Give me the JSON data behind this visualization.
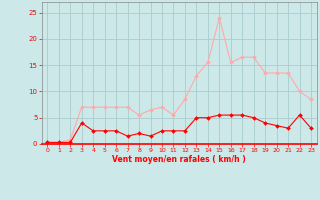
{
  "x": [
    0,
    1,
    2,
    3,
    4,
    5,
    6,
    7,
    8,
    9,
    10,
    11,
    12,
    13,
    14,
    15,
    16,
    17,
    18,
    19,
    20,
    21,
    22,
    23
  ],
  "wind_avg": [
    0.3,
    0.3,
    0.3,
    4.0,
    2.5,
    2.5,
    2.5,
    1.5,
    2.0,
    1.5,
    2.5,
    2.5,
    2.5,
    5.0,
    5.0,
    5.5,
    5.5,
    5.5,
    5.0,
    4.0,
    3.5,
    3.0,
    5.5,
    3.0
  ],
  "wind_gust": [
    0.3,
    0.3,
    0.8,
    7.0,
    7.0,
    7.0,
    7.0,
    7.0,
    5.5,
    6.5,
    7.0,
    5.5,
    8.5,
    13.0,
    15.5,
    24.0,
    15.5,
    16.5,
    16.5,
    13.5,
    13.5,
    13.5,
    10.0,
    8.5
  ],
  "color_avg": "#ff0000",
  "color_gust": "#ffaaaa",
  "bg_color": "#cce8e8",
  "grid_color": "#aacccc",
  "xlabel": "Vent moyen/en rafales ( km/h )",
  "xlabel_color": "#ff0000",
  "tick_color": "#ff0000",
  "spine_color": "#888888",
  "ylim": [
    0,
    27
  ],
  "xlim": [
    -0.5,
    23.5
  ],
  "yticks": [
    0,
    5,
    10,
    15,
    20,
    25
  ],
  "xticks": [
    0,
    1,
    2,
    3,
    4,
    5,
    6,
    7,
    8,
    9,
    10,
    11,
    12,
    13,
    14,
    15,
    16,
    17,
    18,
    19,
    20,
    21,
    22,
    23
  ]
}
